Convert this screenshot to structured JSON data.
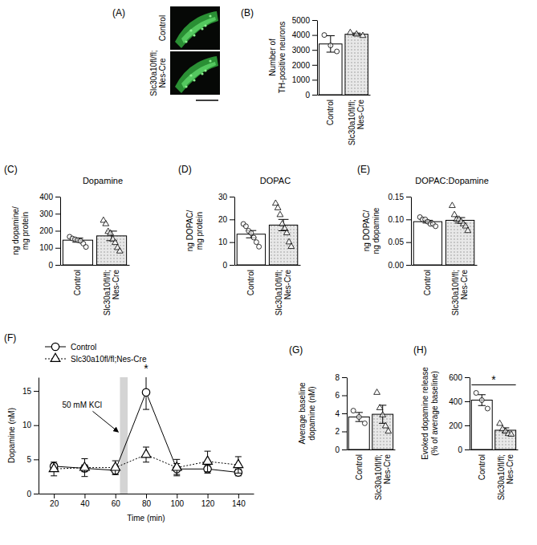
{
  "figure": {
    "panel": "(A)",
    "labels": [
      "Control",
      "Slc30a10fl/fl;\nNes-Cre"
    ]
  },
  "chart_data": [
    {
      "type": "bar",
      "panel": "(B)",
      "ylabel": [
        "Number of",
        "TH-positive neurons"
      ],
      "categories": [
        "Control",
        "Slc30a10fl/fl;\nNes-Cre"
      ],
      "values": [
        3400,
        4050
      ],
      "errors": [
        550,
        80
      ],
      "points": [
        [
          4000,
          3300,
          2900
        ],
        [
          4150,
          4050,
          3950
        ]
      ],
      "colors": [
        "#ffffff",
        "#e8e8e8"
      ],
      "ylim": [
        0,
        5000
      ],
      "yticks": [
        0,
        1000,
        2000,
        3000,
        4000,
        5000
      ]
    },
    {
      "type": "bar",
      "panel": "(C)",
      "title": "Dopamine",
      "ylabel": [
        "ng dopamine/",
        "mg protein"
      ],
      "categories": [
        "Control",
        "Slc30a10fl/fl;\nNes-Cre"
      ],
      "values": [
        145,
        170
      ],
      "errors": [
        12,
        28
      ],
      "points": [
        [
          165,
          155,
          150,
          145,
          140,
          125,
          105
        ],
        [
          260,
          240,
          195,
          185,
          150,
          130,
          100,
          80
        ]
      ],
      "colors": [
        "#ffffff",
        "#e8e8e8"
      ],
      "ylim": [
        0,
        400
      ],
      "yticks": [
        0,
        100,
        200,
        300,
        400
      ]
    },
    {
      "type": "bar",
      "panel": "(D)",
      "title": "DOPAC",
      "ylabel": [
        "ng DOPAC/",
        "mg protein"
      ],
      "categories": [
        "Control",
        "Slc30a10fl/fl;\nNes-Cre"
      ],
      "values": [
        13.5,
        17.5
      ],
      "errors": [
        1.6,
        2.5
      ],
      "points": [
        [
          18,
          17,
          15,
          14,
          12,
          10,
          8
        ],
        [
          27,
          25,
          22,
          18,
          16,
          14,
          10,
          8
        ]
      ],
      "colors": [
        "#ffffff",
        "#e8e8e8"
      ],
      "ylim": [
        0,
        30
      ],
      "yticks": [
        0,
        10,
        20,
        30
      ]
    },
    {
      "type": "bar",
      "panel": "(E)",
      "title": "DOPAC:Dopamine",
      "ylabel": [
        "ng DOPAC/",
        "ng dopamine"
      ],
      "categories": [
        "Control",
        "Slc30a10fl/fl;\nNes-Cre"
      ],
      "values": [
        0.095,
        0.098
      ],
      "errors": [
        0.003,
        0.006
      ],
      "points": [
        [
          0.105,
          0.1,
          0.1,
          0.095,
          0.09,
          0.09,
          0.085
        ],
        [
          0.13,
          0.11,
          0.1,
          0.1,
          0.095,
          0.09,
          0.085,
          0.075
        ]
      ],
      "colors": [
        "#ffffff",
        "#e8e8e8"
      ],
      "ylim": [
        0,
        0.15
      ],
      "yticks": [
        {
          "value": 0,
          "label": "0.00"
        },
        0.05,
        {
          "value": 0.1,
          "label": "0.10"
        },
        0.15
      ]
    },
    {
      "type": "line",
      "panel": "(F)",
      "xlabel": "Time (min)",
      "ylabel": "Dopamine (nM)",
      "x": [
        20,
        40,
        60,
        80,
        100,
        120,
        140
      ],
      "series": [
        {
          "name": "Control",
          "color": "#000000",
          "marker": "circle",
          "line_style": "solid",
          "values": [
            4.0,
            3.7,
            3.4,
            14.8,
            3.6,
            3.6,
            3.1
          ],
          "errors": [
            0.4,
            0.5,
            0.6,
            2.5,
            0.8,
            0.6,
            0.5
          ]
        },
        {
          "name": "Slc30a10fl/fl;Nes-Cre",
          "color": "#000000",
          "marker": "triangle",
          "line_style": "dotted",
          "values": [
            3.6,
            3.8,
            3.8,
            5.7,
            3.8,
            4.7,
            4.2
          ],
          "errors": [
            1.0,
            1.3,
            1.0,
            1.1,
            1.2,
            1.5,
            1.2
          ]
        }
      ],
      "xlim": [
        10,
        150
      ],
      "xticks": [
        20,
        40,
        60,
        80,
        100,
        120,
        140
      ],
      "ylim": [
        0,
        17
      ],
      "yticks": [
        0,
        5,
        10,
        15
      ],
      "legend": "top-left",
      "shaded_region": [
        63,
        68
      ],
      "annotations": [
        "50 mM KCl"
      ],
      "significance": [
        {
          "label": "*",
          "x": 80
        }
      ]
    },
    {
      "type": "bar",
      "panel": "(G)",
      "ylabel": [
        "Average baseline",
        "dopamine (nM)"
      ],
      "categories": [
        "Control",
        "Slc30a10fl/fl;\nNes-Cre"
      ],
      "values": [
        3.6,
        3.9
      ],
      "errors": [
        0.5,
        1.0
      ],
      "points": [
        [
          4.3,
          3.6,
          2.9
        ],
        [
          6.3,
          4.6,
          3.8,
          2.6,
          2.0
        ]
      ],
      "colors": [
        "#ffffff",
        "#e8e8e8"
      ],
      "ylim": [
        0,
        8
      ],
      "yticks": [
        0,
        2,
        4,
        6,
        8
      ]
    },
    {
      "type": "bar",
      "panel": "(H)",
      "ylabel": [
        "Evoked dopamine release",
        "(% of average baseline)"
      ],
      "categories": [
        "Control",
        "Slc30a10fl/fl;\nNes-Cre"
      ],
      "values": [
        410,
        160
      ],
      "errors": [
        45,
        20
      ],
      "points": [
        [
          470,
          410,
          340
        ],
        [
          215,
          170,
          150,
          130,
          125
        ]
      ],
      "colors": [
        "#ffffff",
        "#e8e8e8"
      ],
      "ylim": [
        0,
        600
      ],
      "yticks": [
        0,
        200,
        400,
        600
      ],
      "significance": [
        {
          "label": "*",
          "categories": [
            0,
            1
          ]
        }
      ]
    }
  ]
}
